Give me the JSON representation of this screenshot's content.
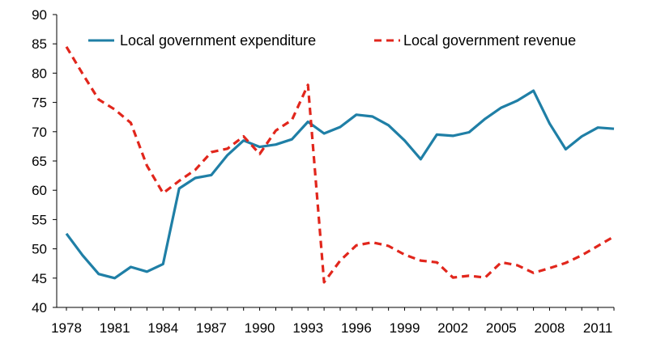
{
  "chart_data": {
    "type": "line",
    "title": "",
    "xlabel": "",
    "ylabel": "",
    "xlim": [
      1978,
      2012
    ],
    "ylim": [
      40,
      90
    ],
    "y_ticks": [
      40,
      45,
      50,
      55,
      60,
      65,
      70,
      75,
      80,
      85,
      90
    ],
    "x_ticks": [
      1978,
      1981,
      1984,
      1987,
      1990,
      1993,
      1996,
      1999,
      2002,
      2005,
      2008,
      2011
    ],
    "grid": false,
    "legend_position": "top",
    "x": [
      1978,
      1979,
      1980,
      1981,
      1982,
      1983,
      1984,
      1985,
      1986,
      1987,
      1988,
      1989,
      1990,
      1991,
      1992,
      1993,
      1994,
      1995,
      1996,
      1997,
      1998,
      1999,
      2000,
      2001,
      2002,
      2003,
      2004,
      2005,
      2006,
      2007,
      2008,
      2009,
      2010,
      2011,
      2012
    ],
    "series": [
      {
        "name": "Local government expenditure",
        "color": "#1f7fa6",
        "style": "solid",
        "values": [
          52.6,
          48.9,
          45.7,
          45.0,
          46.9,
          46.1,
          47.4,
          60.3,
          62.1,
          62.6,
          66.0,
          68.5,
          67.4,
          67.8,
          68.7,
          71.7,
          69.7,
          70.8,
          72.9,
          72.6,
          71.1,
          68.5,
          65.3,
          69.5,
          69.3,
          69.9,
          72.2,
          74.1,
          75.3,
          77.0,
          71.4,
          67.0,
          69.2,
          70.7,
          70.5
        ]
      },
      {
        "name": "Local government revenue",
        "color": "#e1261c",
        "style": "dashed",
        "values": [
          84.5,
          79.9,
          75.5,
          73.8,
          71.5,
          64.2,
          59.5,
          61.6,
          63.5,
          66.5,
          67.1,
          69.2,
          66.2,
          70.2,
          72.0,
          78.0,
          44.3,
          48.0,
          50.6,
          51.1,
          50.5,
          49.0,
          48.0,
          47.7,
          45.1,
          45.4,
          45.1,
          47.7,
          47.2,
          45.9,
          46.7,
          47.6,
          48.9,
          50.5,
          52.1
        ]
      }
    ]
  }
}
